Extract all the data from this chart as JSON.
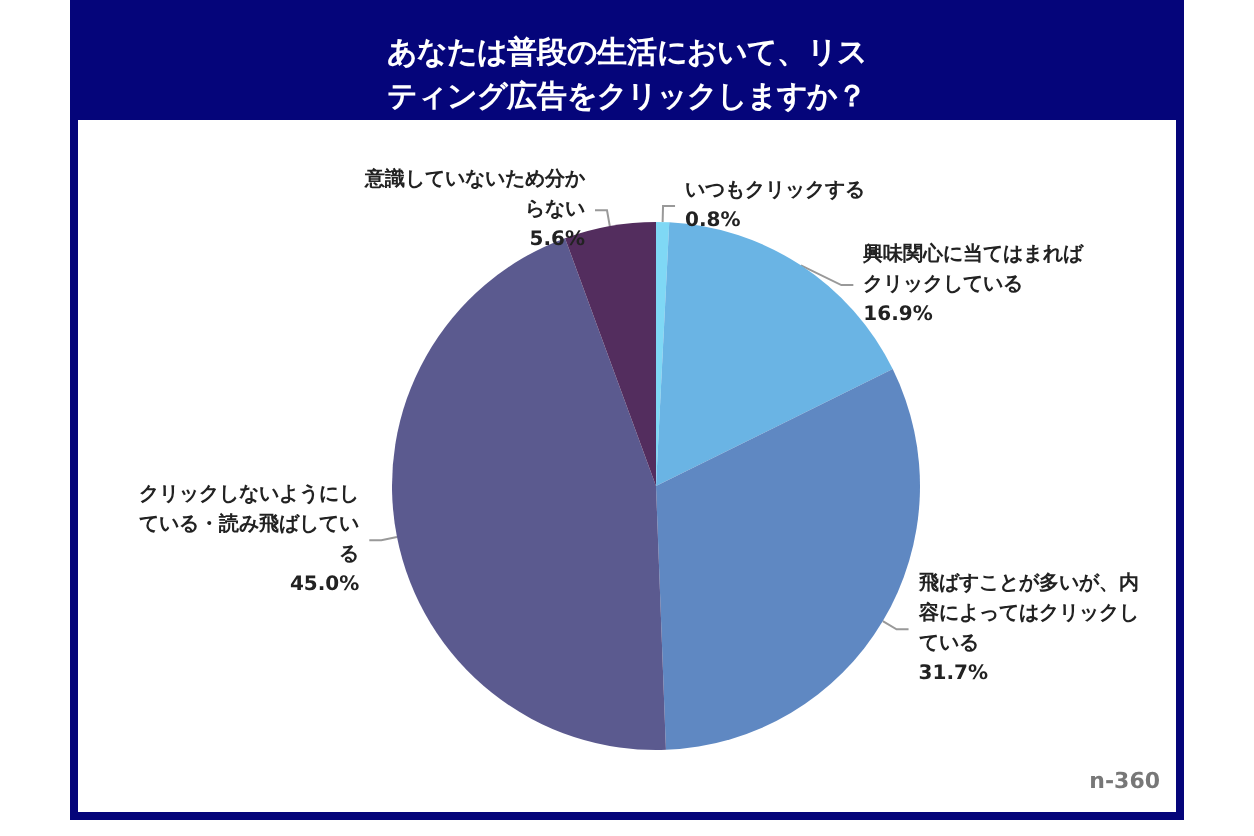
{
  "chart_data": {
    "type": "pie",
    "title": "あなたは普段の生活において、リスティング広告をクリックしますか？",
    "categories": [
      "いつもクリックする",
      "興味関心に当てはまればクリックしている",
      "飛ばすことが多いが、内容によってはクリックしている",
      "クリックしないようにしている・読み飛ばしている",
      "意識していないため分からない"
    ],
    "values": [
      0.8,
      16.9,
      31.7,
      45.0,
      5.6
    ],
    "value_labels": [
      "0.8%",
      "16.9%",
      "31.7%",
      "45.0%",
      "5.6%"
    ],
    "colors": [
      "#7fd8f5",
      "#6ab4e4",
      "#5f88c2",
      "#5b5a8f",
      "#532d5e"
    ],
    "legend": false,
    "annotations": [
      "n-360"
    ]
  }
}
